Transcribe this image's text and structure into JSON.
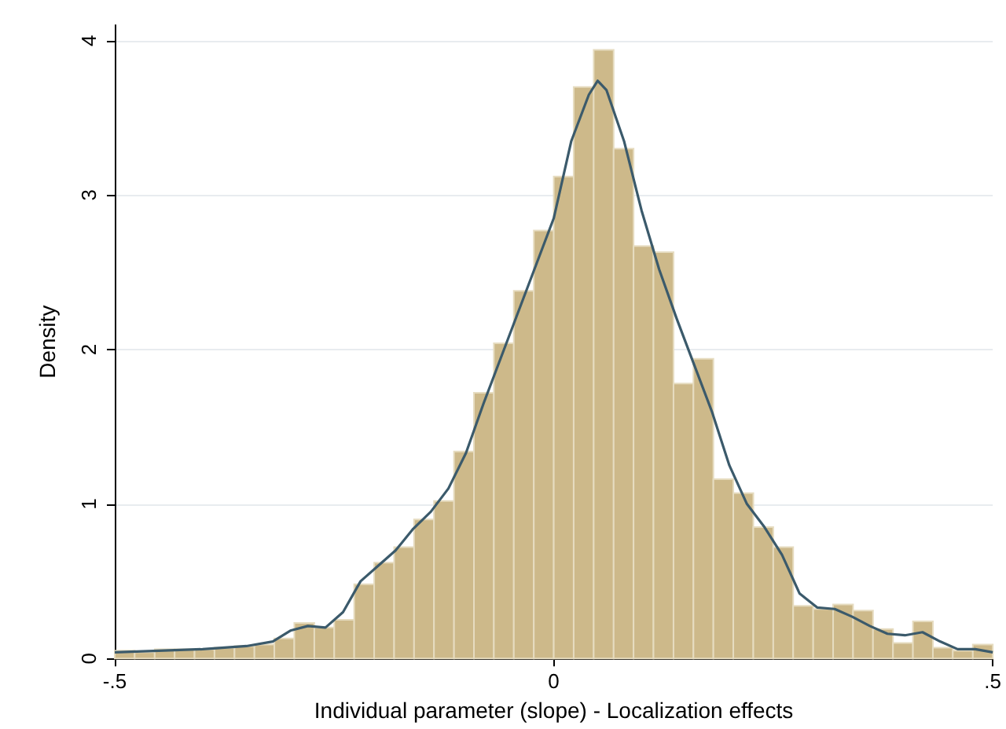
{
  "chart_data": {
    "type": "histogram",
    "xlabel": "Individual parameter (slope) - Localization effects",
    "ylabel": "Density",
    "xlim": [
      -0.5,
      0.5
    ],
    "xticks": [
      {
        "value": -0.5,
        "label": "-.5"
      },
      {
        "value": 0,
        "label": "0"
      },
      {
        "value": 0.5,
        "label": ".5"
      }
    ],
    "ylim": [
      0,
      4.1
    ],
    "yticks": [
      0,
      1,
      2,
      3,
      4
    ],
    "grid": "y",
    "series": [
      {
        "color": "#cdb98a",
        "bins": [
          -0.5,
          -0.4773,
          -0.4545,
          -0.4318,
          -0.4091,
          -0.3864,
          -0.3636,
          -0.3409,
          -0.3182,
          -0.2955,
          -0.2727,
          -0.25,
          -0.2273,
          -0.2045,
          -0.1818,
          -0.1591,
          -0.1364,
          -0.1136,
          -0.0909,
          -0.0682,
          -0.0455,
          -0.0227,
          0,
          0.0227,
          0.0455,
          0.0682,
          0.0909,
          0.1136,
          0.1364,
          0.1591,
          0.1818,
          0.2045,
          0.2273,
          0.25,
          0.2727,
          0.2955,
          0.3182,
          0.3409,
          0.3636,
          0.3864,
          0.4091,
          0.4318,
          0.4545,
          0.4773,
          0.5
        ],
        "values": [
          0.05,
          0.04,
          0.06,
          0.06,
          0.06,
          0.07,
          0.08,
          0.09,
          0.13,
          0.23,
          0.2,
          0.25,
          0.48,
          0.62,
          0.72,
          0.9,
          1.02,
          1.34,
          1.72,
          2.04,
          2.38,
          2.77,
          3.12,
          3.7,
          3.94,
          3.3,
          2.67,
          2.63,
          1.78,
          1.94,
          1.16,
          1.07,
          0.85,
          0.72,
          0.34,
          0.32,
          0.35,
          0.31,
          0.19,
          0.1,
          0.24,
          0.07,
          0.05,
          0.09
        ]
      },
      {
        "type": "line",
        "color": "#3b5a6b",
        "x": [
          -0.5,
          -0.45,
          -0.4,
          -0.35,
          -0.32,
          -0.3,
          -0.28,
          -0.26,
          -0.24,
          -0.22,
          -0.2,
          -0.18,
          -0.16,
          -0.14,
          -0.12,
          -0.1,
          -0.08,
          -0.06,
          -0.04,
          -0.02,
          0,
          0.02,
          0.04,
          0.05,
          0.06,
          0.08,
          0.1,
          0.12,
          0.14,
          0.16,
          0.18,
          0.2,
          0.22,
          0.24,
          0.26,
          0.28,
          0.3,
          0.32,
          0.34,
          0.36,
          0.38,
          0.4,
          0.42,
          0.44,
          0.46,
          0.48,
          0.5
        ],
        "values": [
          0.04,
          0.05,
          0.06,
          0.08,
          0.11,
          0.18,
          0.21,
          0.2,
          0.3,
          0.5,
          0.6,
          0.7,
          0.84,
          0.95,
          1.1,
          1.33,
          1.65,
          1.95,
          2.25,
          2.55,
          2.85,
          3.35,
          3.65,
          3.74,
          3.68,
          3.35,
          2.9,
          2.52,
          2.2,
          1.9,
          1.6,
          1.25,
          1.0,
          0.85,
          0.67,
          0.42,
          0.33,
          0.32,
          0.27,
          0.21,
          0.16,
          0.15,
          0.17,
          0.11,
          0.06,
          0.06,
          0.04
        ]
      }
    ]
  }
}
